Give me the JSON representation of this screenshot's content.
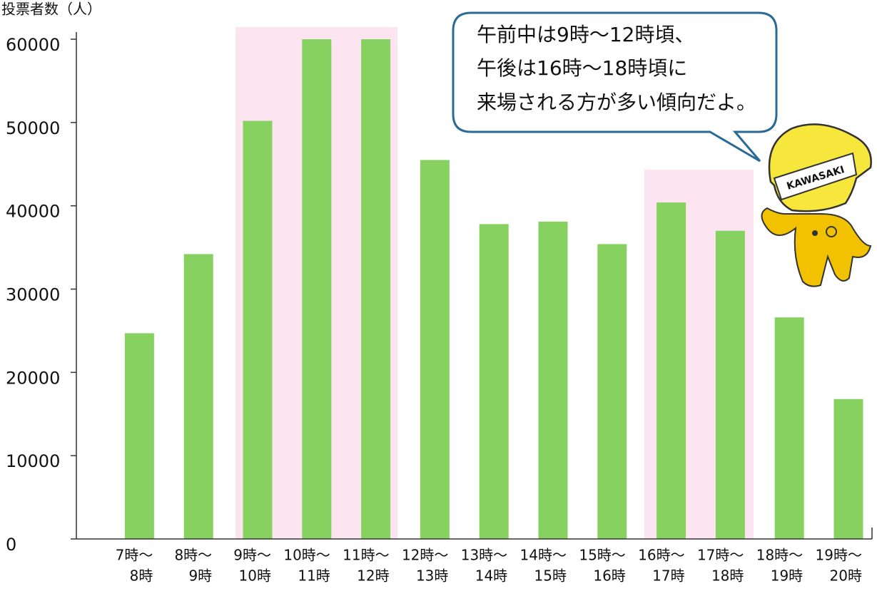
{
  "chart_data": {
    "type": "bar",
    "y_axis_label": "投票者数（人）",
    "categories": [
      [
        "7時～",
        "8時"
      ],
      [
        "8時～",
        "9時"
      ],
      [
        "9時～",
        "10時"
      ],
      [
        "10時～",
        "11時"
      ],
      [
        "11時～",
        "12時"
      ],
      [
        "12時～",
        "13時"
      ],
      [
        "13時～",
        "14時"
      ],
      [
        "14時～",
        "15時"
      ],
      [
        "15時～",
        "16時"
      ],
      [
        "16時～",
        "17時"
      ],
      [
        "17時～",
        "18時"
      ],
      [
        "18時～",
        "19時"
      ],
      [
        "19時～",
        "20時"
      ]
    ],
    "values": [
      24700,
      34200,
      50200,
      60000,
      60000,
      45500,
      37800,
      38100,
      35400,
      40400,
      37000,
      26600,
      16800
    ],
    "color": "#86d160",
    "ylim": [
      0,
      60000
    ],
    "yticks": [
      0,
      10000,
      20000,
      30000,
      40000,
      50000,
      60000
    ],
    "annotation": [
      "午前中は9時～12時頃、",
      "午後は16時～18時頃に",
      "来場される方が多い傾向だよ。"
    ],
    "mascot_label": "KAWASAKI"
  }
}
